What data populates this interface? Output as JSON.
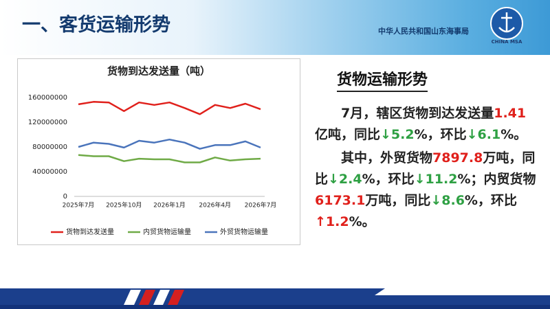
{
  "header": {
    "title": "一、客货运输形势",
    "agency": "中华人民共和国山东海事局",
    "logo_text": "CHINA MSA"
  },
  "chart_data": {
    "type": "line",
    "title": "货物到达发送量（吨）",
    "categories": [
      "2025年7月",
      null,
      null,
      "2025年10月",
      null,
      null,
      "2026年1月",
      null,
      null,
      "2026年4月",
      null,
      null,
      "2026年7月"
    ],
    "series": [
      {
        "name": "货物到达发送量",
        "color": "#e0201b",
        "values": [
          149000000,
          153000000,
          152000000,
          138000000,
          152000000,
          148000000,
          152000000,
          143000000,
          133000000,
          148000000,
          143000000,
          150000000,
          141000000
        ]
      },
      {
        "name": "内贸货物运输量",
        "color": "#6faa46",
        "values": [
          67000000,
          65000000,
          65000000,
          57000000,
          61000000,
          60000000,
          60000000,
          55000000,
          55000000,
          63000000,
          58000000,
          60000000,
          61000000
        ]
      },
      {
        "name": "外贸货物运输量",
        "color": "#4a74bb",
        "values": [
          80000000,
          87000000,
          85000000,
          79000000,
          90000000,
          87000000,
          92000000,
          87000000,
          77000000,
          83000000,
          83000000,
          89000000,
          79000000
        ]
      }
    ],
    "ylim": [
      0,
      160000000
    ],
    "yticks": [
      0,
      40000000,
      80000000,
      120000000,
      160000000
    ],
    "grid": false,
    "legend": "bottom"
  },
  "section": {
    "title": "货物运输形势",
    "paragraphs": [
      [
        {
          "text": "7月，辖区货物到达发送量"
        },
        {
          "text": "1.41",
          "color": "#e0201b"
        },
        {
          "text": "亿吨，同比"
        },
        {
          "text": "↓5.2",
          "color": "#2ea043"
        },
        {
          "text": "%，环比"
        },
        {
          "text": "↓6.1",
          "color": "#2ea043"
        },
        {
          "text": "%。"
        }
      ],
      [
        {
          "text": "其中，外贸货物"
        },
        {
          "text": "7897.8",
          "color": "#e0201b"
        },
        {
          "text": "万吨，同比"
        },
        {
          "text": "↓2.4",
          "color": "#2ea043"
        },
        {
          "text": "%，环比"
        },
        {
          "text": "↓11.2",
          "color": "#2ea043"
        },
        {
          "text": "%；内贸货物"
        },
        {
          "text": "6173.1",
          "color": "#e0201b"
        },
        {
          "text": "万吨，同比"
        },
        {
          "text": "↓8.6",
          "color": "#2ea043"
        },
        {
          "text": "%，环比"
        },
        {
          "text": "↑1.2",
          "color": "#e0201b"
        },
        {
          "text": "%。"
        }
      ]
    ]
  }
}
